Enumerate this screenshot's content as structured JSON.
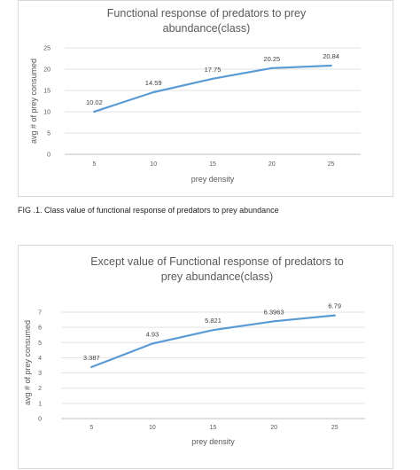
{
  "chart_data": [
    {
      "type": "line",
      "title": "Functional response of predators to prey abundance(class)",
      "title_lines": [
        "Functional response of predators to prey",
        "abundance(class)"
      ],
      "xlabel": "prey density",
      "ylabel": "avg # of prey consumed",
      "categories": [
        "5",
        "10",
        "15",
        "20",
        "25"
      ],
      "series": [
        {
          "values": [
            10.02,
            14.59,
            17.75,
            20.25,
            20.84
          ]
        }
      ],
      "data_labels": [
        "10.02",
        "14.59",
        "17.75",
        "20.25",
        "20.84"
      ],
      "y_ticks": [
        0,
        5,
        10,
        15,
        20,
        25
      ],
      "ylim": [
        0,
        25
      ],
      "grid": true,
      "color": "#5b9bd5"
    },
    {
      "type": "line",
      "title": "Except value of Functional response of predators to prey abundance(class)",
      "title_lines": [
        "Except value of Functional response of predators to",
        "prey abundance(class)"
      ],
      "xlabel": "prey density",
      "ylabel": "avg # of prey consumed",
      "categories": [
        "5",
        "10",
        "15",
        "20",
        "25"
      ],
      "series": [
        {
          "values": [
            3.387,
            4.93,
            5.821,
            6.3963,
            6.79
          ]
        }
      ],
      "data_labels": [
        "3.387",
        "4.93",
        "5.821",
        "6.3963",
        "6.79"
      ],
      "y_ticks": [
        0,
        1,
        2,
        3,
        4,
        5,
        6,
        7
      ],
      "ylim": [
        0,
        7
      ],
      "grid": true,
      "color": "#5b9bd5"
    }
  ],
  "caption": "FIG .1.  Class value of functional response of predators to prey abundance"
}
